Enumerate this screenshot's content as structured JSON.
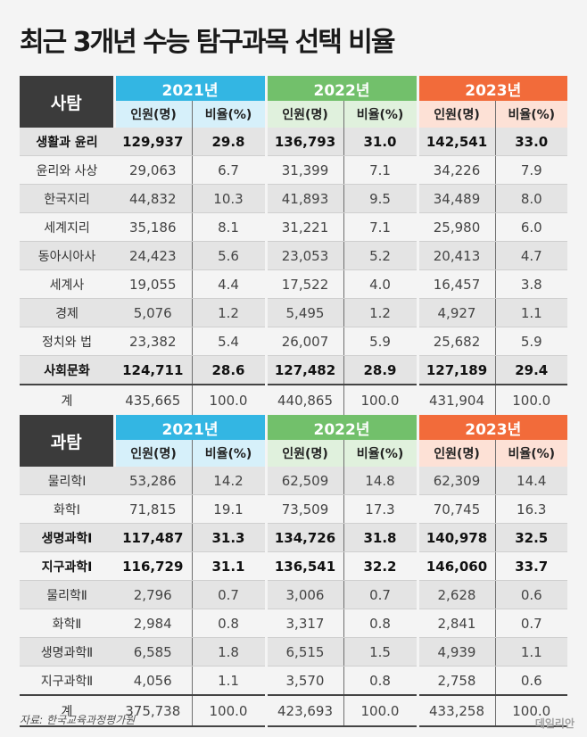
{
  "title": "최근 3개년 수능 탐구과목 선택 비율",
  "years": [
    "2021년",
    "2022년",
    "2023년"
  ],
  "subheaders": {
    "count": "인원(명)",
    "ratio": "비율(%)"
  },
  "colors": {
    "y2021": "#33b6e3",
    "y2022": "#72c06b",
    "y2023": "#f26b3a",
    "section": "#3b3b3b"
  },
  "social": {
    "label": "사탐",
    "rows": [
      {
        "name": "생활과 윤리",
        "c21": "129,937",
        "r21": "29.8",
        "c22": "136,793",
        "r22": "31.0",
        "c23": "142,541",
        "r23": "33.0"
      },
      {
        "name": "윤리와 사상",
        "c21": "29,063",
        "r21": "6.7",
        "c22": "31,399",
        "r22": "7.1",
        "c23": "34,226",
        "r23": "7.9"
      },
      {
        "name": "한국지리",
        "c21": "44,832",
        "r21": "10.3",
        "c22": "41,893",
        "r22": "9.5",
        "c23": "34,489",
        "r23": "8.0"
      },
      {
        "name": "세계지리",
        "c21": "35,186",
        "r21": "8.1",
        "c22": "31,221",
        "r22": "7.1",
        "c23": "25,980",
        "r23": "6.0"
      },
      {
        "name": "동아시아사",
        "c21": "24,423",
        "r21": "5.6",
        "c22": "23,053",
        "r22": "5.2",
        "c23": "20,413",
        "r23": "4.7"
      },
      {
        "name": "세계사",
        "c21": "19,055",
        "r21": "4.4",
        "c22": "17,522",
        "r22": "4.0",
        "c23": "16,457",
        "r23": "3.8"
      },
      {
        "name": "경제",
        "c21": "5,076",
        "r21": "1.2",
        "c22": "5,495",
        "r22": "1.2",
        "c23": "4,927",
        "r23": "1.1"
      },
      {
        "name": "정치와 법",
        "c21": "23,382",
        "r21": "5.4",
        "c22": "26,007",
        "r22": "5.9",
        "c23": "25,682",
        "r23": "5.9"
      },
      {
        "name": "사회문화",
        "c21": "124,711",
        "r21": "28.6",
        "c22": "127,482",
        "r22": "28.9",
        "c23": "127,189",
        "r23": "29.4"
      }
    ],
    "total": {
      "name": "계",
      "c21": "435,665",
      "r21": "100.0",
      "c22": "440,865",
      "r22": "100.0",
      "c23": "431,904",
      "r23": "100.0"
    }
  },
  "science": {
    "label": "과탐",
    "rows": [
      {
        "name": "물리학Ⅰ",
        "c21": "53,286",
        "r21": "14.2",
        "c22": "62,509",
        "r22": "14.8",
        "c23": "62,309",
        "r23": "14.4"
      },
      {
        "name": "화학Ⅰ",
        "c21": "71,815",
        "r21": "19.1",
        "c22": "73,509",
        "r22": "17.3",
        "c23": "70,745",
        "r23": "16.3"
      },
      {
        "name": "생명과학Ⅰ",
        "c21": "117,487",
        "r21": "31.3",
        "c22": "134,726",
        "r22": "31.8",
        "c23": "140,978",
        "r23": "32.5"
      },
      {
        "name": "지구과학Ⅰ",
        "c21": "116,729",
        "r21": "31.1",
        "c22": "136,541",
        "r22": "32.2",
        "c23": "146,060",
        "r23": "33.7"
      },
      {
        "name": "물리학Ⅱ",
        "c21": "2,796",
        "r21": "0.7",
        "c22": "3,006",
        "r22": "0.7",
        "c23": "2,628",
        "r23": "0.6"
      },
      {
        "name": "화학Ⅱ",
        "c21": "2,984",
        "r21": "0.8",
        "c22": "3,317",
        "r22": "0.8",
        "c23": "2,841",
        "r23": "0.7"
      },
      {
        "name": "생명과학Ⅱ",
        "c21": "6,585",
        "r21": "1.8",
        "c22": "6,515",
        "r22": "1.5",
        "c23": "4,939",
        "r23": "1.1"
      },
      {
        "name": "지구과학Ⅱ",
        "c21": "4,056",
        "r21": "1.1",
        "c22": "3,570",
        "r22": "0.8",
        "c23": "2,758",
        "r23": "0.6"
      }
    ],
    "total": {
      "name": "계",
      "c21": "375,738",
      "r21": "100.0",
      "c22": "423,693",
      "r22": "100.0",
      "c23": "433,258",
      "r23": "100.0"
    }
  },
  "source": "자료: 한국교육과정평가원",
  "brand": "데일리안"
}
